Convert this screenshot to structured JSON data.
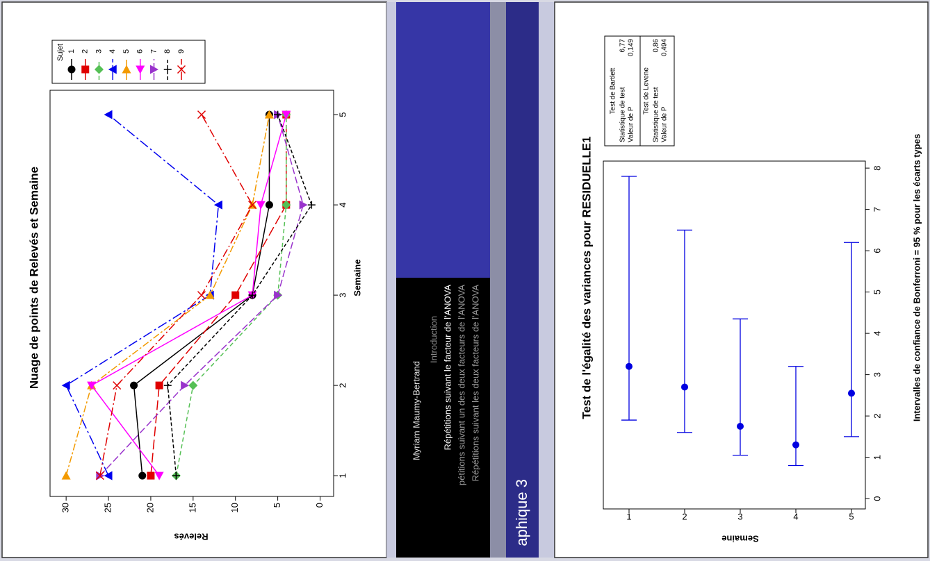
{
  "chart_data": [
    {
      "type": "line",
      "title": "Nuage de points de Relevés et Semaine",
      "x_label": "Semaine",
      "y_label": "Relevés",
      "x": [
        1,
        2,
        3,
        4,
        5
      ],
      "xlim": [
        0.77,
        5.27
      ],
      "xticks": [
        1,
        2,
        3,
        4,
        5
      ],
      "ylim": [
        -1.6,
        31.9
      ],
      "yticks": [
        0,
        5,
        10,
        15,
        20,
        25,
        30
      ],
      "legend_title": "Sujet",
      "series": [
        {
          "name": "1",
          "color": "#000000",
          "marker": "circle",
          "dash": "none",
          "values": [
            21,
            22,
            8,
            6,
            6
          ]
        },
        {
          "name": "2",
          "color": "#e00000",
          "marker": "square",
          "dash": "14 5",
          "values": [
            20,
            19,
            10,
            4,
            4
          ]
        },
        {
          "name": "3",
          "color": "#55c055",
          "marker": "diamond",
          "dash": "6 4",
          "values": [
            17,
            15,
            5,
            4,
            4
          ]
        },
        {
          "name": "4",
          "color": "#0000ee",
          "marker": "triangle-up",
          "dash": "14 4 3 4",
          "values": [
            25,
            30,
            13,
            12,
            25
          ]
        },
        {
          "name": "5",
          "color": "#f39a00",
          "marker": "triangle-right",
          "dash": "10 3 3 3",
          "values": [
            30,
            27,
            13,
            8,
            6
          ]
        },
        {
          "name": "6",
          "color": "#ff00ff",
          "marker": "triangle-left",
          "dash": "none",
          "values": [
            19,
            27,
            8,
            7,
            4
          ]
        },
        {
          "name": "7",
          "color": "#9933cc",
          "marker": "triangle-down",
          "dash": "10 4",
          "values": [
            26,
            16,
            5,
            2,
            5
          ]
        },
        {
          "name": "8",
          "color": "#000000",
          "marker": "plus",
          "dash": "5 3",
          "values": [
            17,
            18,
            8,
            1,
            5
          ]
        },
        {
          "name": "9",
          "color": "#e00000",
          "marker": "x",
          "dash": "12 4 2 4",
          "values": [
            26,
            24,
            14,
            8,
            14
          ]
        }
      ]
    },
    {
      "type": "interval",
      "title": "Test de l'égalité des variances pour RESIDUELLE1",
      "x_label": "Intervalles de confiance de Bonferroni = 95 % pour les écarts types",
      "y_label": "Semaine",
      "categories": [
        "1",
        "2",
        "3",
        "4",
        "5"
      ],
      "color": "#0000e0",
      "values": [
        3.2,
        2.7,
        1.75,
        1.3,
        2.55
      ],
      "lower": [
        1.9,
        1.6,
        1.05,
        0.8,
        1.5
      ],
      "upper": [
        7.8,
        6.5,
        4.35,
        3.2,
        6.2
      ],
      "xlim": [
        -0.25,
        8.17
      ],
      "xticks": [
        0,
        1,
        2,
        3,
        4,
        5,
        6,
        7,
        8
      ],
      "tests": [
        {
          "title": "Test de Bartlett",
          "rows": [
            [
              "Statistique de test",
              "6,77"
            ],
            [
              "Valeur de P",
              "0,149"
            ]
          ]
        },
        {
          "title": "Test de Levene",
          "rows": [
            [
              "Statistique de test",
              "0,86"
            ],
            [
              "Valeur de P",
              "0,494"
            ]
          ]
        }
      ]
    }
  ],
  "slide": {
    "author": "Myriam Maumy-Bertrand",
    "sections": [
      "Introduction",
      "Répétitions suivant le facteur de l'ANOVA",
      "pétitions suivant un des deux facteurs de l'ANOVA",
      "Répétitions suivant les deux facteurs de l'ANOVA"
    ],
    "heading": "aphique 3"
  }
}
